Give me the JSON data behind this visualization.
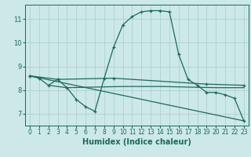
{
  "xlabel": "Humidex (Indice chaleur)",
  "background_color": "#cce8e8",
  "line_color": "#1a6b5a",
  "grid_color": "#aacccc",
  "xlim": [
    -0.5,
    23.5
  ],
  "ylim": [
    6.5,
    11.6
  ],
  "yticks": [
    7,
    8,
    9,
    10,
    11
  ],
  "xticks": [
    0,
    1,
    2,
    3,
    4,
    5,
    6,
    7,
    8,
    9,
    10,
    11,
    12,
    13,
    14,
    15,
    16,
    17,
    18,
    19,
    20,
    21,
    22,
    23
  ],
  "curve1": {
    "x": [
      0,
      1,
      2,
      3,
      4,
      5,
      6,
      7,
      8,
      9,
      10,
      11,
      12,
      13,
      14,
      15,
      16,
      17,
      18,
      19,
      20,
      21,
      22,
      23
    ],
    "y": [
      8.6,
      8.5,
      8.2,
      8.45,
      8.1,
      7.6,
      7.3,
      7.1,
      8.5,
      9.8,
      10.75,
      11.1,
      11.3,
      11.35,
      11.35,
      11.3,
      9.5,
      8.45,
      8.2,
      7.9,
      7.9,
      7.8,
      7.65,
      6.7
    ]
  },
  "curve2": {
    "x": [
      0,
      3,
      9,
      19,
      23
    ],
    "y": [
      8.6,
      8.45,
      8.5,
      8.25,
      8.2
    ]
  },
  "curve3": {
    "x": [
      2,
      4,
      10,
      14,
      20,
      23
    ],
    "y": [
      8.2,
      8.1,
      8.15,
      8.15,
      8.1,
      8.1
    ]
  },
  "curve4": {
    "x": [
      0,
      23
    ],
    "y": [
      8.6,
      6.7
    ]
  }
}
